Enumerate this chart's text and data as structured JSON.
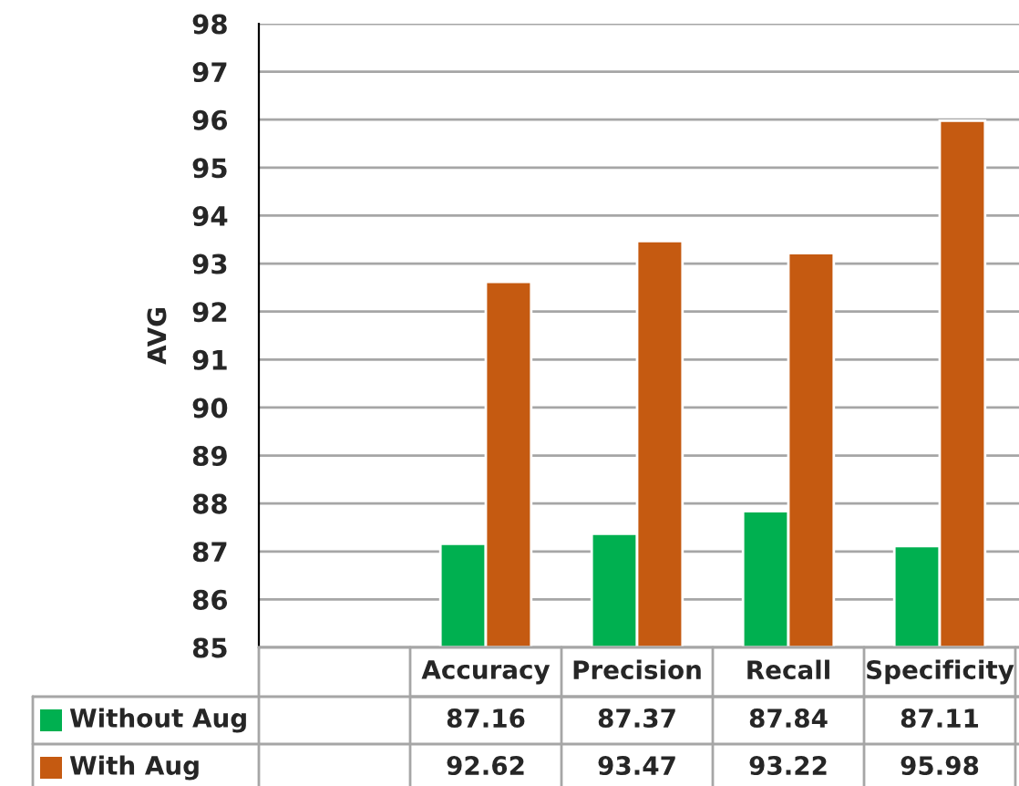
{
  "chart_data": {
    "type": "bar",
    "ylabel": "AVG",
    "categories": [
      null,
      "Accuracy",
      "Precision",
      "Recall",
      "Specificity",
      null
    ],
    "series": [
      {
        "name": "Without Aug",
        "color": "#00b050",
        "values": [
          null,
          87.16,
          87.37,
          87.84,
          87.11,
          null
        ]
      },
      {
        "name": "With Aug",
        "color": "#c55a11",
        "values": [
          null,
          92.62,
          93.47,
          93.22,
          95.98,
          null
        ]
      }
    ],
    "ylim": [
      85,
      98
    ],
    "yticks": [
      85,
      86,
      87,
      88,
      89,
      90,
      91,
      92,
      93,
      94,
      95,
      96,
      97,
      98
    ],
    "grid": "y",
    "legend": "bottom",
    "data_labels": true
  }
}
